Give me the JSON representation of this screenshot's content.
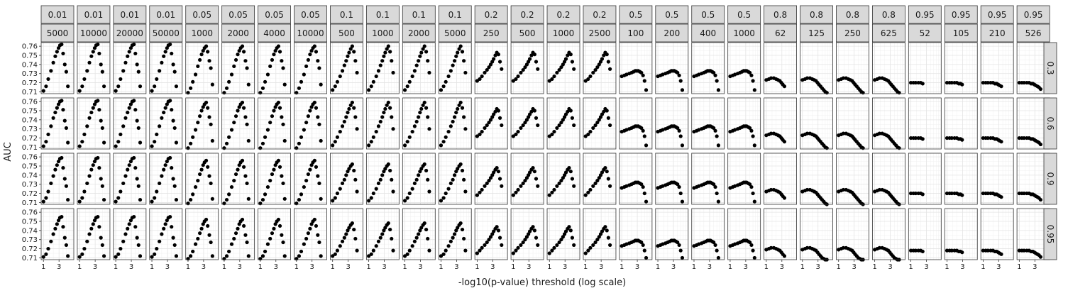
{
  "chart_data": {
    "type": "scatter",
    "xlabel": "-log10(p-value) threshold (log scale)",
    "ylabel": "AUC",
    "x_scale": "log",
    "x_ticks": [
      "1",
      "3"
    ],
    "y_ticks": [
      "0.71",
      "0.72",
      "0.73",
      "0.74",
      "0.75",
      "0.76"
    ],
    "ylim": [
      0.708,
      0.764
    ],
    "grid": true,
    "col_strips": [
      [
        "0.01",
        "5000"
      ],
      [
        "0.01",
        "10000"
      ],
      [
        "0.01",
        "20000"
      ],
      [
        "0.01",
        "50000"
      ],
      [
        "0.05",
        "1000"
      ],
      [
        "0.05",
        "2000"
      ],
      [
        "0.05",
        "4000"
      ],
      [
        "0.05",
        "10000"
      ],
      [
        "0.1",
        "500"
      ],
      [
        "0.1",
        "1000"
      ],
      [
        "0.1",
        "2000"
      ],
      [
        "0.1",
        "5000"
      ],
      [
        "0.2",
        "250"
      ],
      [
        "0.2",
        "500"
      ],
      [
        "0.2",
        "1000"
      ],
      [
        "0.2",
        "2500"
      ],
      [
        "0.5",
        "100"
      ],
      [
        "0.5",
        "200"
      ],
      [
        "0.5",
        "400"
      ],
      [
        "0.5",
        "1000"
      ],
      [
        "0.8",
        "62"
      ],
      [
        "0.8",
        "125"
      ],
      [
        "0.8",
        "250"
      ],
      [
        "0.8",
        "625"
      ],
      [
        "0.95",
        "52"
      ],
      [
        "0.95",
        "105"
      ],
      [
        "0.95",
        "210"
      ],
      [
        "0.95",
        "526"
      ]
    ],
    "row_strips": [
      "0.3",
      "0.6",
      "0.9",
      "0.95"
    ],
    "shape_x": [
      1.0,
      1.2,
      1.4,
      1.7,
      2.0,
      2.3,
      2.6,
      2.9,
      3.2,
      3.6,
      4.0,
      4.5,
      5.0,
      5.6
    ],
    "groups": [
      {
        "cols": [
          0,
          1,
          2,
          3
        ],
        "rows": [
          [
            0.711,
            0.716,
            0.724,
            0.733,
            0.742,
            0.749,
            0.754,
            0.758,
            0.761,
            0.762,
            0.752,
            0.74,
            0.732,
            0.716
          ],
          [
            0.711,
            0.716,
            0.724,
            0.733,
            0.742,
            0.748,
            0.753,
            0.757,
            0.76,
            0.761,
            0.751,
            0.739,
            0.731,
            0.715
          ],
          [
            0.711,
            0.715,
            0.722,
            0.731,
            0.739,
            0.746,
            0.751,
            0.755,
            0.758,
            0.759,
            0.748,
            0.736,
            0.728,
            0.713
          ],
          [
            0.711,
            0.714,
            0.72,
            0.728,
            0.736,
            0.742,
            0.747,
            0.751,
            0.754,
            0.755,
            0.744,
            0.732,
            0.724,
            0.712
          ]
        ]
      },
      {
        "cols": [
          4,
          5,
          6,
          7
        ],
        "rows": [
          [
            0.709,
            0.714,
            0.721,
            0.729,
            0.738,
            0.745,
            0.751,
            0.755,
            0.758,
            0.76,
            0.754,
            0.744,
            0.736,
            0.718
          ],
          [
            0.709,
            0.714,
            0.721,
            0.729,
            0.737,
            0.744,
            0.75,
            0.754,
            0.757,
            0.759,
            0.753,
            0.743,
            0.735,
            0.717
          ],
          [
            0.709,
            0.713,
            0.719,
            0.727,
            0.734,
            0.741,
            0.746,
            0.751,
            0.754,
            0.756,
            0.749,
            0.739,
            0.731,
            0.714
          ],
          [
            0.709,
            0.712,
            0.717,
            0.725,
            0.731,
            0.737,
            0.742,
            0.747,
            0.75,
            0.752,
            0.745,
            0.735,
            0.727,
            0.712
          ]
        ]
      },
      {
        "cols": [
          8,
          9,
          10,
          11
        ],
        "rows": [
          [
            0.712,
            0.716,
            0.721,
            0.727,
            0.733,
            0.739,
            0.744,
            0.749,
            0.753,
            0.757,
            0.76,
            0.754,
            0.744,
            0.731
          ],
          [
            0.712,
            0.716,
            0.721,
            0.727,
            0.733,
            0.738,
            0.743,
            0.748,
            0.752,
            0.756,
            0.759,
            0.753,
            0.743,
            0.73
          ],
          [
            0.712,
            0.715,
            0.72,
            0.725,
            0.731,
            0.735,
            0.74,
            0.744,
            0.747,
            0.75,
            0.752,
            0.745,
            0.735,
            0.722
          ],
          [
            0.712,
            0.714,
            0.718,
            0.723,
            0.728,
            0.732,
            0.736,
            0.74,
            0.743,
            0.746,
            0.748,
            0.741,
            0.731,
            0.718
          ]
        ]
      },
      {
        "cols": [
          12,
          13,
          14,
          15
        ],
        "rows": [
          [
            0.722,
            0.724,
            0.727,
            0.731,
            0.734,
            0.737,
            0.74,
            0.743,
            0.746,
            0.75,
            0.753,
            0.751,
            0.743,
            0.735
          ],
          [
            0.722,
            0.724,
            0.727,
            0.731,
            0.734,
            0.737,
            0.74,
            0.743,
            0.746,
            0.749,
            0.752,
            0.75,
            0.742,
            0.734
          ],
          [
            0.718,
            0.721,
            0.724,
            0.728,
            0.731,
            0.734,
            0.737,
            0.74,
            0.743,
            0.746,
            0.748,
            0.744,
            0.736,
            0.728
          ],
          [
            0.715,
            0.718,
            0.721,
            0.724,
            0.727,
            0.73,
            0.733,
            0.736,
            0.739,
            0.742,
            0.744,
            0.74,
            0.732,
            0.724
          ]
        ]
      },
      {
        "cols": [
          16,
          17,
          18,
          19
        ],
        "rows": [
          [
            0.727,
            0.728,
            0.729,
            0.73,
            0.731,
            0.732,
            0.733,
            0.733,
            0.733,
            0.732,
            0.731,
            0.728,
            0.722,
            0.712
          ],
          [
            0.727,
            0.728,
            0.729,
            0.73,
            0.731,
            0.732,
            0.733,
            0.733,
            0.733,
            0.732,
            0.731,
            0.728,
            0.722,
            0.712
          ],
          [
            0.726,
            0.727,
            0.728,
            0.729,
            0.73,
            0.731,
            0.732,
            0.732,
            0.732,
            0.731,
            0.73,
            0.727,
            0.72,
            0.711
          ],
          [
            0.723,
            0.724,
            0.725,
            0.726,
            0.727,
            0.728,
            0.729,
            0.729,
            0.729,
            0.728,
            0.727,
            0.724,
            0.718,
            0.71
          ]
        ]
      },
      {
        "cols": [
          20,
          21,
          22,
          23
        ],
        "rows": [
          [
            0.723,
            0.724,
            0.725,
            0.725,
            0.724,
            0.723,
            0.722,
            0.72,
            0.718,
            0.716,
            0.714,
            0.712,
            0.71,
            0.709
          ],
          [
            0.723,
            0.724,
            0.725,
            0.725,
            0.724,
            0.723,
            0.722,
            0.72,
            0.718,
            0.716,
            0.714,
            0.712,
            0.71,
            0.709
          ],
          [
            0.722,
            0.723,
            0.724,
            0.724,
            0.723,
            0.722,
            0.721,
            0.719,
            0.717,
            0.715,
            0.713,
            0.711,
            0.709,
            0.708
          ],
          [
            0.719,
            0.72,
            0.721,
            0.721,
            0.72,
            0.719,
            0.718,
            0.716,
            0.714,
            0.712,
            0.71,
            0.709,
            0.708,
            0.708
          ]
        ]
      },
      {
        "cols": [
          24,
          25,
          26,
          27
        ],
        "rows": [
          [
            0.72,
            0.72,
            0.72,
            0.72,
            0.72,
            0.719,
            0.719,
            0.718,
            0.717,
            0.716,
            0.715,
            0.713,
            0.712,
            0.711
          ],
          [
            0.72,
            0.72,
            0.72,
            0.72,
            0.72,
            0.719,
            0.719,
            0.718,
            0.717,
            0.716,
            0.715,
            0.713,
            0.712,
            0.711
          ],
          [
            0.72,
            0.72,
            0.72,
            0.72,
            0.72,
            0.719,
            0.719,
            0.718,
            0.717,
            0.716,
            0.715,
            0.713,
            0.712,
            0.711
          ],
          [
            0.718,
            0.718,
            0.718,
            0.718,
            0.718,
            0.717,
            0.717,
            0.716,
            0.715,
            0.714,
            0.713,
            0.711,
            0.71,
            0.709
          ]
        ]
      }
    ],
    "point_counts": [
      14,
      14,
      14,
      14,
      14,
      14,
      14,
      14,
      14,
      14,
      14,
      14,
      14,
      14,
      14,
      14,
      14,
      14,
      14,
      14,
      10,
      14,
      14,
      14,
      6,
      8,
      10,
      12
    ]
  }
}
